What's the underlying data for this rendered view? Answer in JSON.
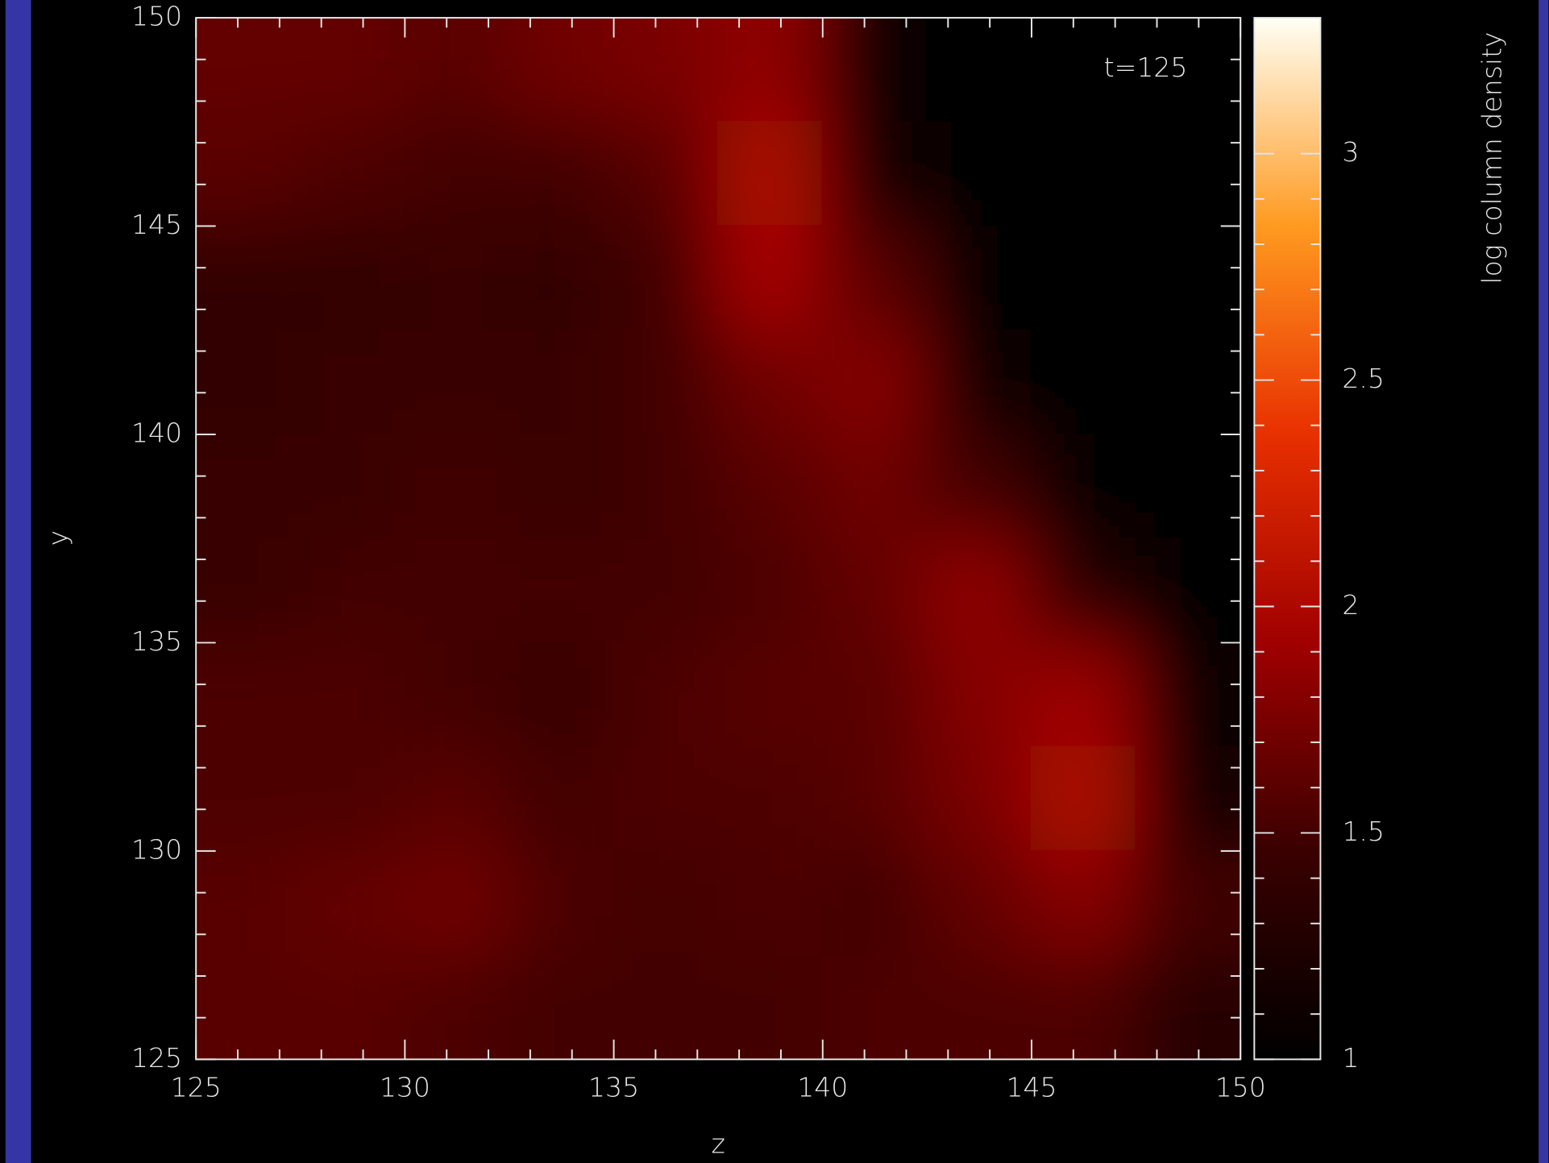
{
  "chart_data": {
    "type": "heatmap",
    "annotation": "t=125",
    "x_label": "z",
    "y_label": "y",
    "x": [
      126.25,
      128.75,
      131.25,
      133.75,
      136.25,
      138.75,
      141.25,
      143.75,
      146.25,
      148.75
    ],
    "y": [
      148.75,
      146.25,
      143.75,
      141.25,
      138.75,
      136.25,
      133.75,
      131.25,
      128.75,
      126.25
    ],
    "values": [
      [
        1.65,
        1.65,
        1.6,
        1.7,
        1.75,
        1.85,
        1.1,
        1.0,
        1.0,
        1.0
      ],
      [
        1.6,
        1.55,
        1.5,
        1.5,
        1.6,
        2.0,
        1.15,
        1.0,
        1.0,
        1.0
      ],
      [
        1.4,
        1.4,
        1.45,
        1.4,
        1.5,
        1.95,
        1.6,
        1.0,
        1.0,
        1.0
      ],
      [
        1.4,
        1.45,
        1.45,
        1.45,
        1.5,
        1.7,
        1.8,
        1.1,
        1.0,
        1.0
      ],
      [
        1.45,
        1.45,
        1.5,
        1.45,
        1.5,
        1.6,
        1.7,
        1.5,
        1.0,
        1.0
      ],
      [
        1.45,
        1.5,
        1.5,
        1.5,
        1.5,
        1.55,
        1.65,
        1.85,
        1.3,
        1.0
      ],
      [
        1.55,
        1.55,
        1.5,
        1.45,
        1.55,
        1.6,
        1.6,
        1.8,
        1.9,
        1.1
      ],
      [
        1.55,
        1.55,
        1.6,
        1.5,
        1.55,
        1.55,
        1.6,
        1.75,
        2.0,
        1.2
      ],
      [
        1.6,
        1.65,
        1.7,
        1.55,
        1.5,
        1.55,
        1.5,
        1.65,
        1.8,
        1.5
      ],
      [
        1.6,
        1.6,
        1.55,
        1.5,
        1.5,
        1.5,
        1.55,
        1.55,
        1.55,
        1.3
      ]
    ],
    "xlim": [
      125,
      150
    ],
    "ylim": [
      125,
      150
    ],
    "xticks": [
      125,
      130,
      135,
      140,
      145,
      150
    ],
    "yticks": [
      125,
      130,
      135,
      140,
      145,
      150
    ],
    "colormap": [
      "#000000",
      "#3a0000",
      "#a00000",
      "#e83000",
      "#ff9a20",
      "#fffff5"
    ],
    "colorbar": {
      "label": "log column density",
      "lim": [
        1,
        3.3
      ],
      "ticks": [
        1,
        1.5,
        2,
        2.5,
        3
      ]
    }
  }
}
